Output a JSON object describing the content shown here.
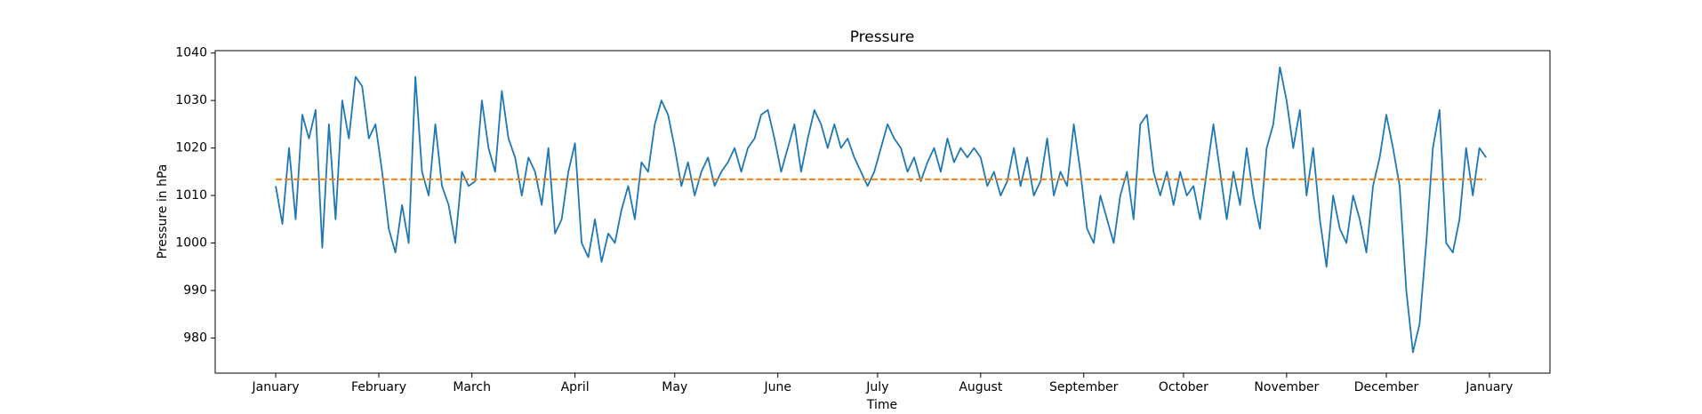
{
  "chart_data": {
    "type": "line",
    "title": "Pressure",
    "xlabel": "Time",
    "ylabel": "Pressure in hPa",
    "x": [
      0,
      2,
      4,
      6,
      8,
      10,
      12,
      14,
      16,
      18,
      20,
      22,
      24,
      26,
      28,
      30,
      32,
      34,
      36,
      38,
      40,
      42,
      44,
      46,
      48,
      50,
      52,
      54,
      56,
      58,
      60,
      62,
      64,
      66,
      68,
      70,
      72,
      74,
      76,
      78,
      80,
      82,
      84,
      86,
      88,
      90,
      92,
      94,
      96,
      98,
      100,
      102,
      104,
      106,
      108,
      110,
      112,
      114,
      116,
      118,
      120,
      122,
      124,
      126,
      128,
      130,
      132,
      134,
      136,
      138,
      140,
      142,
      144,
      146,
      148,
      150,
      152,
      154,
      156,
      158,
      160,
      162,
      164,
      166,
      168,
      170,
      172,
      174,
      176,
      178,
      180,
      182,
      184,
      186,
      188,
      190,
      192,
      194,
      196,
      198,
      200,
      202,
      204,
      206,
      208,
      210,
      212,
      214,
      216,
      218,
      220,
      222,
      224,
      226,
      228,
      230,
      232,
      234,
      236,
      238,
      240,
      242,
      244,
      246,
      248,
      250,
      252,
      254,
      256,
      258,
      260,
      262,
      264,
      266,
      268,
      270,
      272,
      274,
      276,
      278,
      280,
      282,
      284,
      286,
      288,
      290,
      292,
      294,
      296,
      298,
      300,
      302,
      304,
      306,
      308,
      310,
      312,
      314,
      316,
      318,
      320,
      322,
      324,
      326,
      328,
      330,
      332,
      334,
      336,
      338,
      340,
      342,
      344,
      346,
      348,
      350,
      352,
      354,
      356,
      358,
      360,
      362,
      364
    ],
    "series": [
      {
        "color": "#1f77b4",
        "values": [
          1012,
          1004,
          1020,
          1005,
          1027,
          1022,
          1028,
          999,
          1025,
          1005,
          1030,
          1022,
          1035,
          1033,
          1022,
          1025,
          1015,
          1003,
          998,
          1008,
          1000,
          1035,
          1015,
          1010,
          1025,
          1012,
          1008,
          1000,
          1015,
          1012,
          1013,
          1030,
          1020,
          1015,
          1032,
          1022,
          1018,
          1010,
          1018,
          1015,
          1008,
          1020,
          1002,
          1005,
          1015,
          1021,
          1000,
          997,
          1005,
          996,
          1002,
          1000,
          1007,
          1012,
          1005,
          1017,
          1015,
          1025,
          1030,
          1027,
          1020,
          1012,
          1017,
          1010,
          1015,
          1018,
          1012,
          1015,
          1017,
          1020,
          1015,
          1020,
          1022,
          1027,
          1028,
          1022,
          1015,
          1020,
          1025,
          1015,
          1022,
          1028,
          1025,
          1020,
          1025,
          1020,
          1022,
          1018,
          1015,
          1012,
          1015,
          1020,
          1025,
          1022,
          1020,
          1015,
          1018,
          1013,
          1017,
          1020,
          1015,
          1022,
          1017,
          1020,
          1018,
          1020,
          1018,
          1012,
          1015,
          1010,
          1013,
          1020,
          1012,
          1018,
          1010,
          1013,
          1022,
          1010,
          1015,
          1012,
          1025,
          1015,
          1003,
          1000,
          1010,
          1005,
          1000,
          1010,
          1015,
          1005,
          1025,
          1027,
          1015,
          1010,
          1015,
          1008,
          1015,
          1010,
          1012,
          1005,
          1015,
          1025,
          1015,
          1005,
          1015,
          1008,
          1020,
          1010,
          1003,
          1020,
          1025,
          1037,
          1030,
          1020,
          1028,
          1010,
          1020,
          1005,
          995,
          1010,
          1003,
          1000,
          1010,
          1005,
          998,
          1012,
          1018,
          1027,
          1020,
          1012,
          990,
          977,
          983,
          1000,
          1020,
          1028,
          1000,
          998,
          1005,
          1020,
          1010,
          1020,
          1018
        ]
      }
    ],
    "hline": {
      "value": 1013.4,
      "color": "#ff7f0e",
      "dashed": true
    },
    "xlim": [
      -18.2,
      383.2
    ],
    "xticks": [
      {
        "value": 0,
        "label": "January"
      },
      {
        "value": 31,
        "label": "February"
      },
      {
        "value": 59,
        "label": "March"
      },
      {
        "value": 90,
        "label": "April"
      },
      {
        "value": 120,
        "label": "May"
      },
      {
        "value": 151,
        "label": "June"
      },
      {
        "value": 181,
        "label": "July"
      },
      {
        "value": 212,
        "label": "August"
      },
      {
        "value": 243,
        "label": "September"
      },
      {
        "value": 273,
        "label": "October"
      },
      {
        "value": 304,
        "label": "November"
      },
      {
        "value": 334,
        "label": "December"
      },
      {
        "value": 365,
        "label": "January"
      }
    ],
    "ylim": [
      972.6,
      1040.5
    ],
    "yticks": [
      980,
      990,
      1000,
      1010,
      1020,
      1030,
      1040
    ]
  }
}
